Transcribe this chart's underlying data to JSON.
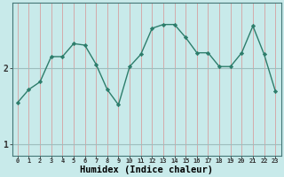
{
  "x": [
    0,
    1,
    2,
    3,
    4,
    5,
    6,
    7,
    8,
    9,
    10,
    11,
    12,
    13,
    14,
    15,
    16,
    17,
    18,
    19,
    20,
    21,
    22,
    23
  ],
  "y": [
    1.55,
    1.72,
    1.82,
    2.15,
    2.15,
    2.32,
    2.3,
    2.05,
    1.72,
    1.52,
    2.02,
    2.18,
    2.52,
    2.57,
    2.57,
    2.4,
    2.2,
    2.2,
    2.02,
    2.02,
    2.2,
    2.55,
    2.18,
    1.7
  ],
  "line_color": "#2d7d6b",
  "marker": "D",
  "marker_size": 2.2,
  "bg_color": "#c8eaea",
  "plot_bg": "#c8eaea",
  "vgrid_color": "#d4a0a0",
  "hgrid_color": "#9dbdbd",
  "xlabel": "Humidex (Indice chaleur)",
  "xlabel_fontsize": 7.5,
  "ytick_labels": [
    "1",
    "2"
  ],
  "ytick_vals": [
    1.0,
    2.0
  ],
  "ylim": [
    0.85,
    2.85
  ],
  "xlim": [
    -0.5,
    23.5
  ],
  "xtick_fontsize": 5.0,
  "ytick_fontsize": 7.0,
  "line_width": 1.0
}
